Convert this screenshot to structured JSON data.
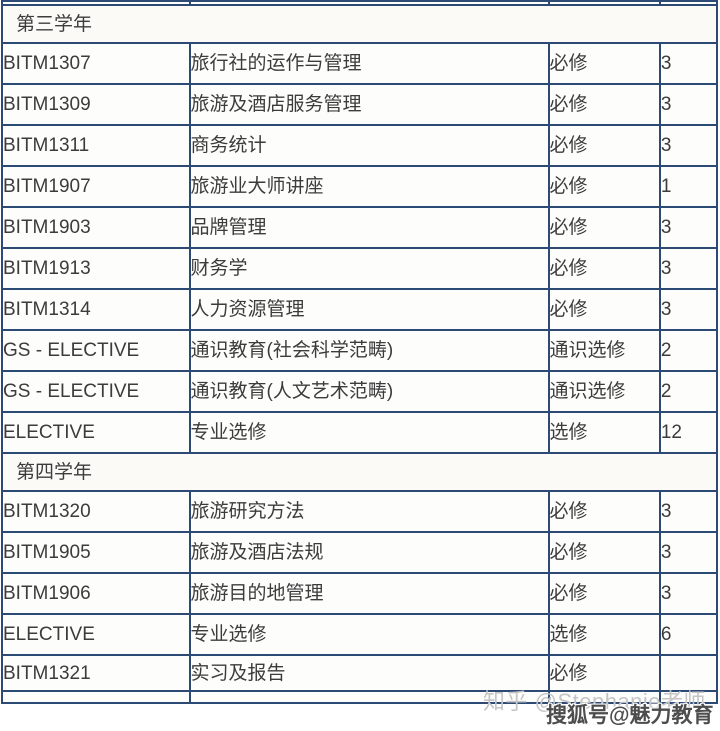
{
  "colors": {
    "border": "#2d4a75",
    "text": "#3c3c3c",
    "cell_bg": "#fdfdfc",
    "year_row_bg": "#fbfaf6",
    "watermark_gray": "#c5c5c5",
    "watermark_dark": "#4d4d4d"
  },
  "table": {
    "columns": [
      "code",
      "name",
      "type",
      "credits"
    ],
    "rows": [
      {
        "kind": "sliver"
      },
      {
        "kind": "year",
        "label": "第三学年"
      },
      {
        "kind": "course",
        "code": "BITM1307",
        "name": "旅行社的运作与管理",
        "type": "必修",
        "credits": "3"
      },
      {
        "kind": "course",
        "code": "BITM1309",
        "name": "旅游及酒店服务管理",
        "type": "必修",
        "credits": "3"
      },
      {
        "kind": "course",
        "code": "BITM1311",
        "name": "商务统计",
        "type": "必修",
        "credits": "3"
      },
      {
        "kind": "course",
        "code": "BITM1907",
        "name": "旅游业大师讲座",
        "type": "必修",
        "credits": "1"
      },
      {
        "kind": "course",
        "code": "BITM1903",
        "name": "品牌管理",
        "type": "必修",
        "credits": "3"
      },
      {
        "kind": "course",
        "code": "BITM1913",
        "name": "财务学",
        "type": "必修",
        "credits": "3"
      },
      {
        "kind": "course",
        "code": "BITM1314",
        "name": "人力资源管理",
        "type": "必修",
        "credits": "3"
      },
      {
        "kind": "course",
        "code": "GS - ELECTIVE",
        "name": "通识教育(社会科学范畴)",
        "type": "通识选修",
        "credits": "2"
      },
      {
        "kind": "course",
        "code": "GS - ELECTIVE",
        "name": "通识教育(人文艺术范畴)",
        "type": "通识选修",
        "credits": "2"
      },
      {
        "kind": "course",
        "code": "ELECTIVE",
        "name": "专业选修",
        "type": "选修",
        "credits": "12"
      },
      {
        "kind": "year",
        "label": "第四学年"
      },
      {
        "kind": "course",
        "code": "BITM1320",
        "name": "旅游研究方法",
        "type": "必修",
        "credits": "3"
      },
      {
        "kind": "course",
        "code": "BITM1905",
        "name": "旅游及酒店法规",
        "type": "必修",
        "credits": "3"
      },
      {
        "kind": "course",
        "code": "BITM1906",
        "name": "旅游目的地管理",
        "type": "必修",
        "credits": "3"
      },
      {
        "kind": "course",
        "code": "ELECTIVE",
        "name": "专业选修",
        "type": "选修",
        "credits": "6"
      },
      {
        "kind": "course_last",
        "code": "BITM1321",
        "name": "实习及报告",
        "type": "必修",
        "credits": ""
      },
      {
        "kind": "bottom"
      }
    ]
  },
  "watermarks": {
    "zhihu": "知乎 @Stephanie老师",
    "souhu": "搜狐号@魅力教育"
  }
}
